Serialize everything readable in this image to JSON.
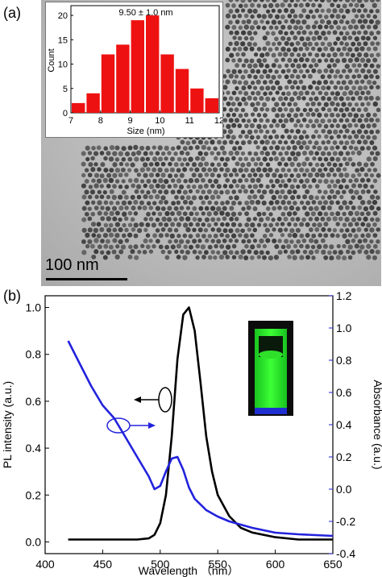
{
  "panel_a": {
    "label": "(a)",
    "scale_bar": "100 nm"
  },
  "panel_b": {
    "label": "(b)"
  },
  "chart_data": [
    {
      "type": "bar",
      "title": "9.50 ± 1.0 nm",
      "xlabel": "Size (nm)",
      "ylabel": "Count",
      "x": [
        7.25,
        7.75,
        8.25,
        8.75,
        9.25,
        9.75,
        10.25,
        10.75,
        11.25,
        11.75
      ],
      "values": [
        2,
        4,
        12,
        14,
        19,
        20,
        12,
        9,
        5,
        3
      ],
      "bar_width": 0.5,
      "xlim": [
        7,
        12
      ],
      "ylim": [
        0,
        22
      ],
      "xticks": [
        "7",
        "8",
        "9",
        "10",
        "11",
        "12"
      ],
      "yticks": [
        "0",
        "5",
        "10",
        "15",
        "20"
      ],
      "bar_color": "#ee1111"
    },
    {
      "type": "line",
      "xlabel": "Wavelength （nm）",
      "ylabel_left": "PL intensity (a.u.)",
      "ylabel_right": "Absorbance (a.u.)",
      "xlim": [
        400,
        650
      ],
      "ylim_left": [
        -0.05,
        1.05
      ],
      "ylim_right": [
        -0.4,
        1.2
      ],
      "xticks": [
        "400",
        "450",
        "500",
        "550",
        "600",
        "650"
      ],
      "yticks_left": [
        "0.0",
        "0.2",
        "0.4",
        "0.6",
        "0.8",
        "1.0"
      ],
      "yticks_right": [
        "-0.4",
        "-0.2",
        "0.0",
        "0.2",
        "0.4",
        "0.6",
        "0.8",
        "1.0",
        "1.2"
      ],
      "series": [
        {
          "axis": "left",
          "color": "#000000",
          "x": [
            420,
            440,
            460,
            480,
            490,
            495,
            500,
            505,
            510,
            515,
            520,
            525,
            530,
            535,
            540,
            545,
            550,
            560,
            570,
            580,
            600,
            620,
            650
          ],
          "y": [
            0.01,
            0.01,
            0.01,
            0.01,
            0.015,
            0.03,
            0.08,
            0.2,
            0.45,
            0.78,
            0.97,
            1.0,
            0.9,
            0.68,
            0.45,
            0.3,
            0.2,
            0.11,
            0.06,
            0.04,
            0.02,
            0.01,
            0.01
          ]
        },
        {
          "axis": "right",
          "color": "#2222dd",
          "x": [
            420,
            430,
            440,
            450,
            460,
            470,
            480,
            490,
            495,
            500,
            505,
            510,
            515,
            520,
            525,
            530,
            540,
            550,
            560,
            580,
            600,
            620,
            650
          ],
          "y": [
            0.92,
            0.78,
            0.64,
            0.52,
            0.44,
            0.32,
            0.2,
            0.08,
            0.0,
            0.02,
            0.11,
            0.19,
            0.2,
            0.12,
            0.01,
            -0.06,
            -0.13,
            -0.17,
            -0.2,
            -0.24,
            -0.27,
            -0.28,
            -0.29
          ]
        }
      ]
    }
  ]
}
